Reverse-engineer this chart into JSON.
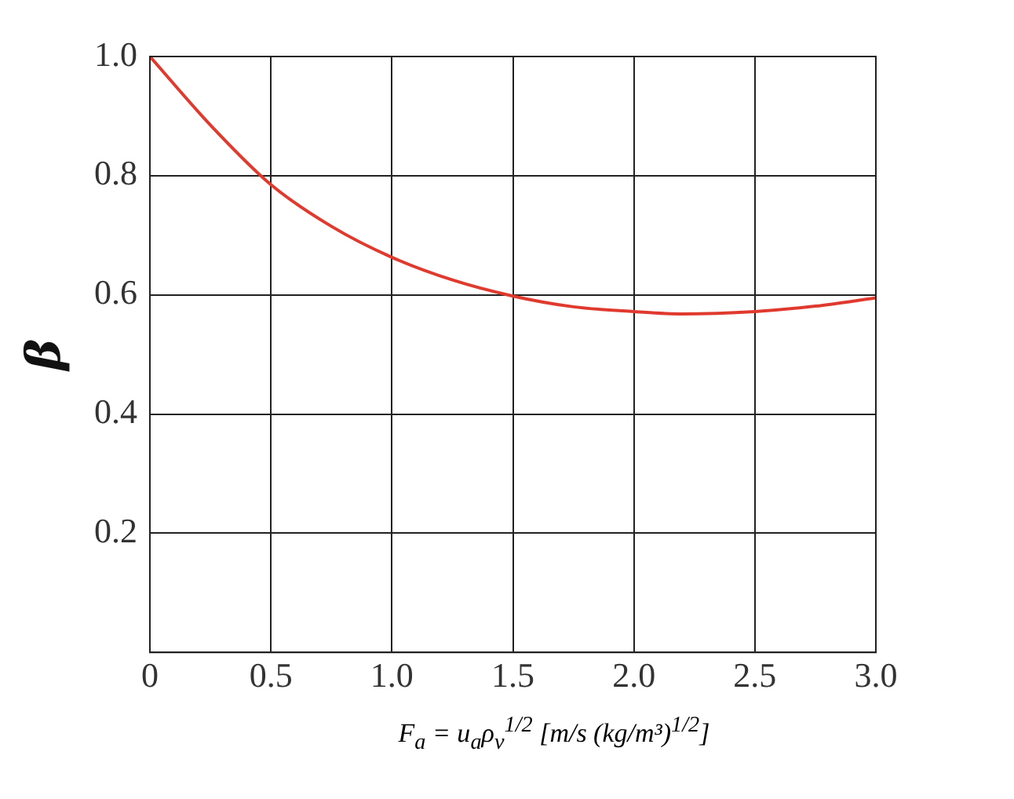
{
  "chart_data": {
    "type": "line",
    "xlabel": "F$_{a}$ = u$_{a}$ρ$_{v}$$^{1/2}$ [m/s (kg/m³)$^{1/2}$]",
    "ylabel": "β",
    "x": [
      0,
      0.25,
      0.5,
      0.75,
      1.0,
      1.25,
      1.5,
      1.75,
      2.0,
      2.2,
      2.5,
      2.75,
      3.0
    ],
    "series": [
      {
        "color": "#e03a2e",
        "values": [
          1.0,
          0.885,
          0.785,
          0.715,
          0.663,
          0.625,
          0.598,
          0.58,
          0.572,
          0.568,
          0.572,
          0.581,
          0.595
        ]
      }
    ],
    "xlim": [
      0,
      3
    ],
    "xticks": [
      0,
      0.5,
      {
        "value": 1,
        "label": "1.0"
      },
      1.5,
      {
        "value": 2,
        "label": "2.0"
      },
      2.5,
      {
        "value": 3,
        "label": "3.0"
      }
    ],
    "ylim": [
      0,
      1
    ],
    "yticks": [
      0.2,
      0.4,
      0.6,
      0.8,
      {
        "value": 1,
        "label": "1.0"
      }
    ],
    "grid": true,
    "legend": false,
    "marker": "none",
    "line_style": "solid"
  }
}
